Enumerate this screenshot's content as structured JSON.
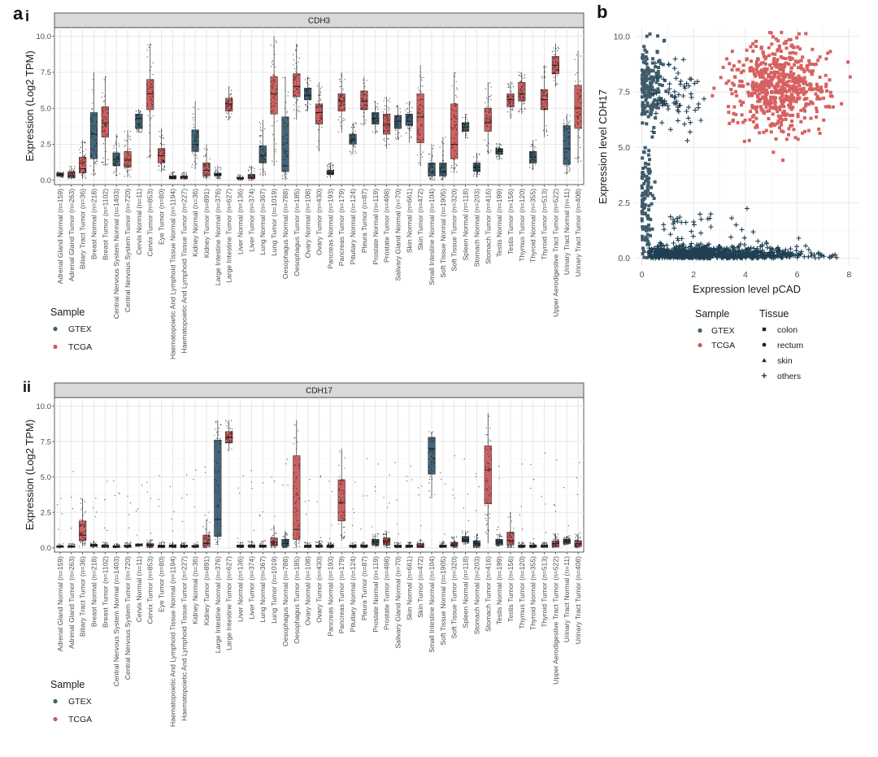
{
  "figure": {
    "labels": {
      "a": "a",
      "a_i": "i",
      "a_ii": "ii",
      "b": "b"
    },
    "colors": {
      "GTEX": "#3b5f73",
      "TCGA": "#cf5a5a",
      "GTEX_point": "#1f3f52",
      "TCGA_point": "#d04545",
      "jitter": "#111111"
    }
  },
  "chart_data": [
    {
      "type": "box",
      "panel": "a-i",
      "strip_title": "CDH3",
      "ylabel": "Expression (Log2 TPM)",
      "ylim": [
        -0.3,
        10.6
      ],
      "yticks": [
        "0.0",
        "2.5",
        "5.0",
        "7.5",
        "10.0"
      ],
      "legend": {
        "title": "Sample",
        "items": [
          "GTEX",
          "TCGA"
        ]
      },
      "categories": [
        "Adrenal Gland Normal (n=159)",
        "Adrenal Gland Tumor (n=263)",
        "Biliary Tract Tumor (n=36)",
        "Breast Normal (n=218)",
        "Breast Tumor (n=1102)",
        "Central Nervous System Normal (n=1403)",
        "Central Nervous System Tumor (n=720)",
        "Cervix Normal (n=11)",
        "Cervix Tumor (n=853)",
        "Eye Tumor (n=80)",
        "Haematopoietic And Lymphoid Tissue Normal (n=1194)",
        "Haematopoietic And Lymphoid Tissue Tumor (n=227)",
        "Kidney Normal (n=36)",
        "Kidney Tumor (n=891)",
        "Large Intestine Normal (n=376)",
        "Large Intestine Tumor (n=627)",
        "Liver Normal (n=136)",
        "Liver Tumor (n=374)",
        "Lung Normal (n=367)",
        "Lung Tumor (n=1019)",
        "Oesophagus Normal (n=788)",
        "Oesophagus Tumor (n=185)",
        "Ovary Normal (n=108)",
        "Ovary Tumor (n=430)",
        "Pancreas Normal (n=193)",
        "Pancreas Tumor (n=179)",
        "Pituitary Normal (n=124)",
        "Pleura Tumor (n=87)",
        "Prostate Normal (n=119)",
        "Prostate Tumor (n=498)",
        "Salivary Gland Normal (n=70)",
        "Skin Normal (n=661)",
        "Skin Tumor (n=472)",
        "Small Intestine Normal (n=104)",
        "Soft Tissue Normal (n=1905)",
        "Soft Tissue Tumor (n=320)",
        "Spleen Normal (n=118)",
        "Stomach Normal (n=203)",
        "Stomach Tumor (n=416)",
        "Testis Normal (n=199)",
        "Testis Tumor (n=156)",
        "Thymus Tumor (n=120)",
        "Thyroid Normal (n=355)",
        "Thyroid Tumor (n=513)",
        "Upper Aerodigestive Tract Tumor (n=522)",
        "Urinary Tract Normal (n=11)",
        "Urinary Tract Tumor (n=408)"
      ],
      "sample": [
        "GTEX",
        "TCGA",
        "TCGA",
        "GTEX",
        "TCGA",
        "GTEX",
        "TCGA",
        "GTEX",
        "TCGA",
        "TCGA",
        "GTEX",
        "TCGA",
        "GTEX",
        "TCGA",
        "GTEX",
        "TCGA",
        "GTEX",
        "TCGA",
        "GTEX",
        "TCGA",
        "GTEX",
        "TCGA",
        "GTEX",
        "TCGA",
        "GTEX",
        "TCGA",
        "GTEX",
        "TCGA",
        "GTEX",
        "TCGA",
        "GTEX",
        "GTEX",
        "TCGA",
        "GTEX",
        "GTEX",
        "TCGA",
        "GTEX",
        "GTEX",
        "TCGA",
        "GTEX",
        "TCGA",
        "TCGA",
        "GTEX",
        "TCGA",
        "TCGA",
        "GTEX",
        "TCGA"
      ],
      "boxes": [
        [
          0.2,
          0.3,
          0.4,
          0.5,
          0.6
        ],
        [
          0.1,
          0.2,
          0.3,
          0.6,
          1.0
        ],
        [
          0.1,
          0.5,
          0.8,
          1.6,
          2.8
        ],
        [
          0.3,
          1.5,
          3.2,
          4.7,
          7.5
        ],
        [
          1.0,
          3.0,
          4.0,
          5.1,
          7.2
        ],
        [
          0.3,
          1.0,
          1.5,
          1.9,
          3.2
        ],
        [
          0.2,
          0.9,
          1.4,
          2.0,
          3.5
        ],
        [
          3.3,
          3.6,
          4.3,
          4.6,
          4.9
        ],
        [
          1.5,
          4.9,
          6.0,
          7.0,
          9.5
        ],
        [
          0.6,
          1.2,
          1.7,
          2.2,
          3.6
        ],
        [
          0.1,
          0.1,
          0.2,
          0.3,
          0.6
        ],
        [
          0.1,
          0.1,
          0.2,
          0.3,
          0.6
        ],
        [
          0.8,
          2.0,
          2.5,
          3.5,
          5.5
        ],
        [
          0.1,
          0.3,
          0.7,
          1.2,
          2.5
        ],
        [
          0.1,
          0.3,
          0.4,
          0.5,
          1.0
        ],
        [
          4.2,
          4.8,
          5.3,
          5.7,
          6.5
        ],
        [
          0.0,
          0.1,
          0.1,
          0.2,
          0.4
        ],
        [
          0.0,
          0.1,
          0.2,
          0.4,
          1.0
        ],
        [
          0.3,
          1.2,
          1.7,
          2.4,
          4.2
        ],
        [
          1.0,
          4.6,
          6.0,
          7.2,
          10.0
        ],
        [
          0.0,
          0.6,
          1.0,
          4.4,
          7.2
        ],
        [
          4.2,
          5.8,
          6.5,
          7.4,
          9.5
        ],
        [
          4.8,
          5.6,
          5.9,
          6.4,
          7.2
        ],
        [
          2.0,
          3.9,
          4.7,
          5.3,
          6.8
        ],
        [
          0.2,
          0.4,
          0.5,
          0.7,
          1.2
        ],
        [
          3.3,
          4.8,
          5.5,
          6.0,
          7.5
        ],
        [
          1.8,
          2.5,
          2.8,
          3.2,
          4.0
        ],
        [
          3.8,
          4.9,
          5.5,
          6.2,
          7.2
        ],
        [
          3.2,
          3.9,
          4.3,
          4.7,
          5.5
        ],
        [
          2.2,
          3.2,
          3.9,
          4.6,
          5.8
        ],
        [
          2.8,
          3.6,
          4.1,
          4.5,
          5.2
        ],
        [
          2.6,
          3.8,
          4.1,
          4.6,
          5.5
        ],
        [
          1.0,
          2.6,
          4.4,
          6.0,
          8.0
        ],
        [
          0.0,
          0.3,
          0.6,
          1.2,
          2.5
        ],
        [
          0.0,
          0.3,
          0.6,
          1.2,
          3.0
        ],
        [
          0.5,
          1.5,
          2.5,
          5.3,
          7.5
        ],
        [
          2.9,
          3.4,
          3.7,
          4.0,
          4.6
        ],
        [
          0.2,
          0.6,
          0.9,
          1.2,
          1.9
        ],
        [
          1.8,
          3.4,
          4.0,
          5.0,
          6.8
        ],
        [
          1.4,
          1.8,
          2.0,
          2.2,
          2.6
        ],
        [
          4.3,
          5.1,
          5.6,
          6.0,
          6.8
        ],
        [
          4.6,
          5.5,
          6.0,
          6.8,
          7.5
        ],
        [
          0.7,
          1.2,
          1.6,
          2.0,
          2.8
        ],
        [
          3.0,
          4.9,
          5.6,
          6.3,
          8.0
        ],
        [
          6.5,
          7.4,
          8.0,
          8.6,
          9.5
        ],
        [
          0.4,
          1.1,
          2.2,
          3.8,
          4.6
        ],
        [
          1.2,
          3.6,
          5.0,
          6.6,
          9.0
        ]
      ]
    },
    {
      "type": "box",
      "panel": "a-ii",
      "strip_title": "CDH17",
      "ylabel": "Expression (Log2 TPM)",
      "ylim": [
        -0.3,
        10.6
      ],
      "yticks": [
        "0.0",
        "2.5",
        "5.0",
        "7.5",
        "10.0"
      ],
      "legend": {
        "title": "Sample",
        "items": [
          "GTEX",
          "TCGA"
        ]
      },
      "categories": [
        "Adrenal Gland Normal (n=159)",
        "Adrenal Gland Tumor (n=263)",
        "Biliary Tract Tumor (n=36)",
        "Breast Normal (n=218)",
        "Breast Tumor (n=1102)",
        "Central Nervous System Normal (n=1403)",
        "Central Nervous System Tumor (n=720)",
        "Cervix Normal (n=11)",
        "Cervix Tumor (n=853)",
        "Eye Tumor (n=80)",
        "Haematopoietic And Lymphoid Tissue Normal (n=1194)",
        "Haematopoietic And Lymphoid Tissue Tumor (n=227)",
        "Kidney Normal (n=36)",
        "Kidney Tumor (n=891)",
        "Large Intestine Normal (n=376)",
        "Large Intestine Tumor (n=627)",
        "Liver Normal (n=136)",
        "Liver Tumor (n=374)",
        "Lung Normal (n=367)",
        "Lung Tumor (n=1019)",
        "Oesophagus Normal (n=788)",
        "Oesophagus Tumor (n=185)",
        "Ovary Normal (n=108)",
        "Ovary Tumor (n=430)",
        "Pancreas Normal (n=193)",
        "Pancreas Tumor (n=179)",
        "Pituitary Normal (n=124)",
        "Pleura Tumor (n=87)",
        "Prostate Normal (n=119)",
        "Prostate Tumor (n=498)",
        "Salivary Gland Normal (n=70)",
        "Skin Normal (n=661)",
        "Skin Tumor (n=472)",
        "Small Intestine Normal (n=104)",
        "Soft Tissue Normal (n=1905)",
        "Soft Tissue Tumor (n=320)",
        "Spleen Normal (n=118)",
        "Stomach Normal (n=203)",
        "Stomach Tumor (n=416)",
        "Testis Normal (n=199)",
        "Testis Tumor (n=156)",
        "Thymus Tumor (n=120)",
        "Thyroid Normal (n=355)",
        "Thyroid Tumor (n=513)",
        "Upper Aerodigestive Tract Tumor (n=522)",
        "Urinary Tract Normal (n=11)",
        "Urinary Tract Tumor (n=408)"
      ],
      "sample": [
        "GTEX",
        "TCGA",
        "TCGA",
        "GTEX",
        "TCGA",
        "GTEX",
        "TCGA",
        "GTEX",
        "TCGA",
        "TCGA",
        "GTEX",
        "TCGA",
        "GTEX",
        "TCGA",
        "GTEX",
        "TCGA",
        "GTEX",
        "TCGA",
        "GTEX",
        "TCGA",
        "GTEX",
        "TCGA",
        "GTEX",
        "TCGA",
        "GTEX",
        "TCGA",
        "GTEX",
        "TCGA",
        "GTEX",
        "TCGA",
        "GTEX",
        "GTEX",
        "TCGA",
        "GTEX",
        "GTEX",
        "TCGA",
        "GTEX",
        "GTEX",
        "TCGA",
        "GTEX",
        "TCGA",
        "TCGA",
        "GTEX",
        "TCGA",
        "TCGA",
        "GTEX",
        "TCGA"
      ],
      "boxes": [
        [
          0.0,
          0.05,
          0.1,
          0.15,
          0.3
        ],
        [
          0.0,
          0.05,
          0.1,
          0.15,
          0.3
        ],
        [
          0.1,
          0.5,
          0.9,
          1.9,
          3.5
        ],
        [
          0.0,
          0.1,
          0.15,
          0.25,
          0.5
        ],
        [
          0.0,
          0.05,
          0.1,
          0.2,
          0.4
        ],
        [
          0.0,
          0.05,
          0.1,
          0.15,
          0.3
        ],
        [
          0.0,
          0.05,
          0.1,
          0.2,
          0.4
        ],
        [
          0.1,
          0.15,
          0.2,
          0.25,
          0.3
        ],
        [
          0.0,
          0.1,
          0.2,
          0.3,
          0.6
        ],
        [
          0.0,
          0.05,
          0.1,
          0.2,
          0.4
        ],
        [
          0.0,
          0.05,
          0.1,
          0.2,
          0.4
        ],
        [
          0.0,
          0.05,
          0.1,
          0.2,
          0.4
        ],
        [
          0.0,
          0.05,
          0.1,
          0.15,
          0.3
        ],
        [
          0.0,
          0.1,
          0.3,
          0.9,
          2.0
        ],
        [
          0.2,
          0.8,
          2.0,
          7.6,
          9.0
        ],
        [
          6.8,
          7.4,
          7.8,
          8.2,
          9.0
        ],
        [
          0.0,
          0.05,
          0.1,
          0.2,
          0.4
        ],
        [
          0.0,
          0.05,
          0.1,
          0.2,
          0.5
        ],
        [
          0.0,
          0.05,
          0.1,
          0.2,
          0.5
        ],
        [
          0.0,
          0.15,
          0.4,
          0.7,
          1.5
        ],
        [
          0.0,
          0.1,
          0.3,
          0.6,
          1.2
        ],
        [
          0.0,
          0.6,
          1.3,
          6.5,
          9.0
        ],
        [
          0.0,
          0.05,
          0.1,
          0.2,
          0.4
        ],
        [
          0.0,
          0.05,
          0.1,
          0.2,
          0.5
        ],
        [
          0.0,
          0.05,
          0.1,
          0.2,
          0.4
        ],
        [
          0.5,
          1.9,
          3.2,
          4.8,
          7.0
        ],
        [
          0.0,
          0.05,
          0.1,
          0.2,
          0.4
        ],
        [
          0.0,
          0.05,
          0.1,
          0.2,
          0.4
        ],
        [
          0.1,
          0.2,
          0.4,
          0.6,
          1.0
        ],
        [
          0.0,
          0.2,
          0.5,
          0.7,
          1.2
        ],
        [
          0.0,
          0.05,
          0.1,
          0.2,
          0.4
        ],
        [
          0.0,
          0.05,
          0.1,
          0.2,
          0.4
        ],
        [
          0.0,
          0.05,
          0.1,
          0.3,
          0.6
        ],
        [
          3.5,
          5.2,
          7.0,
          7.8,
          8.2
        ],
        [
          0.0,
          0.05,
          0.1,
          0.2,
          0.5
        ],
        [
          0.0,
          0.1,
          0.2,
          0.4,
          0.8
        ],
        [
          0.2,
          0.4,
          0.6,
          0.8,
          1.2
        ],
        [
          0.0,
          0.1,
          0.3,
          0.5,
          1.0
        ],
        [
          0.3,
          3.1,
          5.5,
          7.2,
          9.5
        ],
        [
          0.1,
          0.2,
          0.4,
          0.6,
          1.0
        ],
        [
          0.0,
          0.2,
          0.5,
          1.1,
          2.5
        ],
        [
          0.0,
          0.05,
          0.1,
          0.2,
          0.4
        ],
        [
          0.0,
          0.05,
          0.1,
          0.2,
          0.4
        ],
        [
          0.0,
          0.05,
          0.1,
          0.2,
          0.4
        ],
        [
          0.0,
          0.1,
          0.3,
          0.5,
          1.0
        ],
        [
          0.2,
          0.3,
          0.4,
          0.6,
          0.8
        ],
        [
          0.0,
          0.1,
          0.3,
          0.5,
          1.0
        ]
      ]
    },
    {
      "type": "scatter",
      "panel": "b",
      "xlabel": "Expression level pCAD",
      "ylabel": "Expression level CDH17",
      "xlim": [
        -0.3,
        8.4
      ],
      "ylim": [
        -0.35,
        10.4
      ],
      "xticks": [
        "0",
        "2",
        "4",
        "6",
        "8"
      ],
      "yticks": [
        "0.0",
        "2.5",
        "5.0",
        "7.5",
        "10.0"
      ],
      "legend": {
        "sample_title": "Sample",
        "sample_items": [
          "GTEX",
          "TCGA"
        ],
        "tissue_title": "Tissue",
        "tissue_items": [
          "colon",
          "rectum",
          "skin",
          "others"
        ]
      },
      "clusters": [
        {
          "sample": "GTEX",
          "shape": "square",
          "x_center": 0.3,
          "y_center": 7.7,
          "x_spread": 0.35,
          "y_spread": 0.9
        },
        {
          "sample": "GTEX",
          "shape": "plus",
          "x_center": 1.3,
          "y_center": 7.3,
          "x_spread": 0.6,
          "y_spread": 0.8
        },
        {
          "sample": "TCGA",
          "shape": "square",
          "x_center": 5.3,
          "y_center": 7.8,
          "x_spread": 0.95,
          "y_spread": 1.0
        },
        {
          "sample": "GTEX",
          "shape": "square",
          "x_center": 0.15,
          "y_center": 2.5,
          "x_spread": 0.15,
          "y_spread": 1.2
        },
        {
          "sample": "GTEX",
          "shape": "plus",
          "x_center": 3.0,
          "y_center": 0.25,
          "x_spread": 2.0,
          "y_spread": 0.25
        }
      ]
    }
  ]
}
